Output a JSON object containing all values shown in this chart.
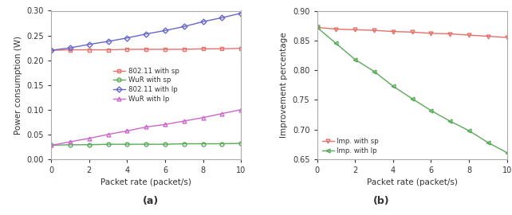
{
  "x": [
    0,
    1,
    2,
    3,
    4,
    5,
    6,
    7,
    8,
    9,
    10
  ],
  "a_802_sp": [
    0.22,
    0.221,
    0.221,
    0.221,
    0.222,
    0.222,
    0.222,
    0.222,
    0.223,
    0.223,
    0.224
  ],
  "a_wur_sp": [
    0.028,
    0.029,
    0.029,
    0.03,
    0.03,
    0.03,
    0.03,
    0.031,
    0.031,
    0.031,
    0.032
  ],
  "a_802_lp": [
    0.22,
    0.225,
    0.232,
    0.238,
    0.245,
    0.253,
    0.26,
    0.268,
    0.278,
    0.286,
    0.295
  ],
  "a_wur_lp": [
    0.028,
    0.035,
    0.042,
    0.05,
    0.057,
    0.065,
    0.07,
    0.077,
    0.084,
    0.092,
    0.1
  ],
  "b_imp_sp": [
    0.872,
    0.869,
    0.868,
    0.867,
    0.865,
    0.864,
    0.862,
    0.861,
    0.859,
    0.857,
    0.855
  ],
  "b_imp_lp": [
    0.872,
    0.845,
    0.818,
    0.798,
    0.773,
    0.752,
    0.732,
    0.714,
    0.698,
    0.678,
    0.661
  ],
  "color_red": "#e8706a",
  "color_green": "#5aaa5a",
  "color_blue": "#6666cc",
  "color_magenta": "#cc66cc",
  "label_a1": "802.11 with sp",
  "label_a2": "WuR with sp",
  "label_a3": "802.11 with lp",
  "label_a4": "WuR with lp",
  "label_b1": "Imp. with sp",
  "label_b2": "Imp. with lp",
  "xlabel": "Packet rate (packet/s)",
  "ylabel_a": "Power consumption (W)",
  "ylabel_b": "Improvement percentage",
  "caption_a": "(a)",
  "caption_b": "(b)",
  "xlim": [
    0,
    10
  ],
  "ylim_a": [
    0.0,
    0.3
  ],
  "ylim_b": [
    0.65,
    0.9
  ],
  "yticks_a": [
    0.0,
    0.05,
    0.1,
    0.15,
    0.2,
    0.25,
    0.3
  ],
  "yticks_b": [
    0.65,
    0.7,
    0.75,
    0.8,
    0.85,
    0.9
  ],
  "xticks": [
    0,
    2,
    4,
    6,
    8,
    10
  ],
  "bg_color": "#ffffff",
  "spine_color": "#aaaaaa"
}
